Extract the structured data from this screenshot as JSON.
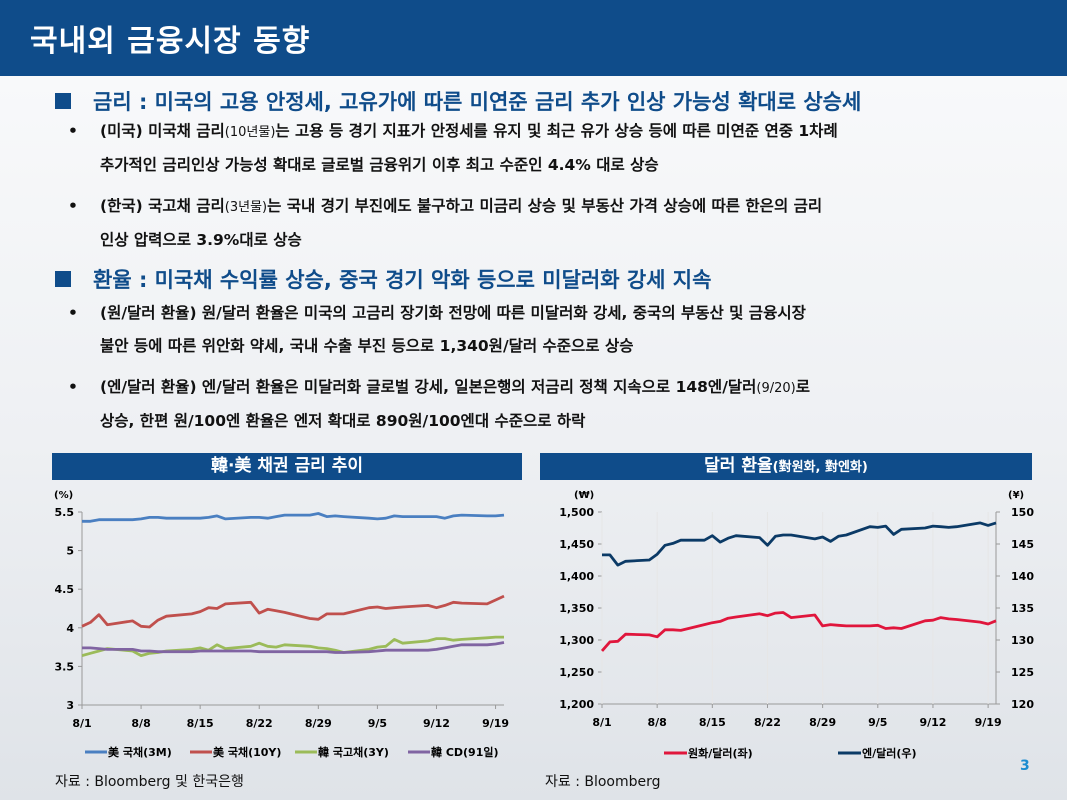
{
  "title": "국내외 금융시장 동향",
  "sections": [
    {
      "heading": "금리 : 미국의 고용 안정세, 고유가에 따른 미연준 금리 추가 인상 가능성 확대로 상승세",
      "bullets": [
        {
          "a": "(미국) 미국채 금리",
          "s": "(10년물)",
          "b": "는 고용 등 경기 지표가 안정세를 유지 및 최근 유가 상승 등에 따른 미연준 연중 1차례",
          "c": "추가적인 금리인상 가능성 확대로 글로벌 금융위기 이후 최고 수준인 4.4% 대로 상승"
        },
        {
          "a": "(한국) 국고채 금리",
          "s": "(3년물)",
          "b": "는 국내 경기 부진에도 불구하고 미금리 상승 및 부동산 가격 상승에 따른 한은의 금리",
          "c": "인상 압력으로 3.9%대로 상승"
        }
      ]
    },
    {
      "heading": "환율 : 미국채 수익률 상승, 중국 경기 악화 등으로 미달러화 강세 지속",
      "bullets": [
        {
          "a": "(원/달러 환율) 원/달러 환율은 미국의 고금리 장기화 전망에 따른 미달러화 강세, 중국의 부동산 및 금융시장",
          "s": "",
          "b": "",
          "c": "불안 등에 따른 위안화 약세, 국내 수출 부진 등으로 1,340원/달러 수준으로 상승"
        },
        {
          "a": "(엔/달러 환율) 엔/달러 환율은 미달러화 글로벌 강세, 일본은행의 저금리 정책 지속으로 148엔/달러",
          "s": "(9/20)",
          "b": "로",
          "c": "상승, 한편 원/100엔 환율은 엔저 확대로 890원/100엔대 수준으로 하락"
        }
      ]
    }
  ],
  "bullet_symbol": "•",
  "page_number": "3",
  "chart_data": [
    {
      "type": "line",
      "title": "韓·美 채권 금리 추이",
      "ylabel": "(%)",
      "ylim": [
        3,
        5.5
      ],
      "yticks": [
        "3",
        "3.5",
        "4",
        "4.5",
        "5",
        "5.5"
      ],
      "xticks": [
        "8/1",
        "8/8",
        "8/15",
        "8/22",
        "8/29",
        "9/5",
        "9/12",
        "9/19"
      ],
      "x": [
        "8/1",
        "8/2",
        "8/3",
        "8/4",
        "8/7",
        "8/8",
        "8/9",
        "8/10",
        "8/11",
        "8/14",
        "8/15",
        "8/16",
        "8/17",
        "8/18",
        "8/21",
        "8/22",
        "8/23",
        "8/24",
        "8/25",
        "8/28",
        "8/29",
        "8/30",
        "8/31",
        "9/1",
        "9/4",
        "9/5",
        "9/6",
        "9/7",
        "9/8",
        "9/11",
        "9/12",
        "9/13",
        "9/14",
        "9/15",
        "9/18",
        "9/19",
        "9/20"
      ],
      "legend": "bottom",
      "series": [
        {
          "name": "美 국채(3M)",
          "color": "#4a7fc1",
          "values": [
            5.38,
            5.38,
            5.4,
            5.4,
            5.4,
            5.41,
            5.43,
            5.43,
            5.42,
            5.42,
            5.42,
            5.43,
            5.45,
            5.41,
            5.43,
            5.43,
            5.42,
            5.44,
            5.46,
            5.46,
            5.48,
            5.44,
            5.45,
            5.44,
            5.42,
            5.41,
            5.42,
            5.45,
            5.44,
            5.44,
            5.44,
            5.42,
            5.45,
            5.46,
            5.45,
            5.45,
            5.46
          ]
        },
        {
          "name": "美 국채(10Y)",
          "color": "#c0504d",
          "values": [
            4.02,
            4.07,
            4.17,
            4.04,
            4.09,
            4.02,
            4.01,
            4.1,
            4.15,
            4.18,
            4.21,
            4.26,
            4.25,
            4.31,
            4.33,
            4.19,
            4.24,
            4.22,
            4.2,
            4.12,
            4.11,
            4.18,
            4.18,
            4.18,
            4.26,
            4.27,
            4.25,
            4.26,
            4.27,
            4.29,
            4.26,
            4.29,
            4.33,
            4.32,
            4.31,
            4.36,
            4.41
          ]
        },
        {
          "name": "韓 국고채(3Y)",
          "color": "#9bbb59",
          "values": [
            3.64,
            3.67,
            3.7,
            3.73,
            3.7,
            3.64,
            3.67,
            3.68,
            3.7,
            3.72,
            3.74,
            3.71,
            3.78,
            3.73,
            3.76,
            3.8,
            3.76,
            3.75,
            3.78,
            3.76,
            3.74,
            3.73,
            3.71,
            3.68,
            3.72,
            3.75,
            3.76,
            3.85,
            3.8,
            3.83,
            3.86,
            3.86,
            3.84,
            3.85,
            3.87,
            3.88,
            3.88
          ]
        },
        {
          "name": "韓 CD(91일)",
          "color": "#8064a2",
          "values": [
            3.74,
            3.74,
            3.73,
            3.72,
            3.72,
            3.7,
            3.7,
            3.69,
            3.69,
            3.69,
            3.7,
            3.7,
            3.7,
            3.7,
            3.7,
            3.69,
            3.69,
            3.69,
            3.69,
            3.69,
            3.69,
            3.69,
            3.68,
            3.68,
            3.69,
            3.7,
            3.71,
            3.71,
            3.71,
            3.71,
            3.72,
            3.74,
            3.76,
            3.78,
            3.78,
            3.79,
            3.81
          ]
        }
      ],
      "source": "자료 : Bloomberg 및 한국은행"
    },
    {
      "type": "line",
      "title": "달러 환율",
      "title_sub": "(對원화, 對엔화)",
      "ylabel": "(₩)",
      "y2label": "(¥)",
      "ylim": [
        1200,
        1500
      ],
      "y2lim": [
        120,
        150
      ],
      "yticks": [
        "1,200",
        "1,250",
        "1,300",
        "1,350",
        "1,400",
        "1,450",
        "1,500"
      ],
      "y2ticks": [
        "120",
        "125",
        "130",
        "135",
        "140",
        "145",
        "150"
      ],
      "xticks": [
        "8/1",
        "8/8",
        "8/15",
        "8/22",
        "8/29",
        "9/5",
        "9/12",
        "9/19"
      ],
      "legend": "bottom",
      "series": [
        {
          "name": "원화/달러(좌)",
          "color": "#e0163c",
          "axis": "left",
          "values": [
            1283,
            1297,
            1298,
            1309,
            1308,
            1305,
            1316,
            1316,
            1315,
            1324,
            1327,
            1329,
            1334,
            1336,
            1341,
            1338,
            1342,
            1343,
            1335,
            1339,
            1322,
            1324,
            1323,
            1322,
            1322,
            1323,
            1318,
            1319,
            1318,
            1330,
            1331,
            1335,
            1333,
            1332,
            1328,
            1325,
            1330
          ]
        },
        {
          "name": "엔/달러(우)",
          "color": "#0b3a66",
          "axis": "right",
          "values": [
            143.3,
            143.3,
            141.7,
            142.3,
            142.5,
            143.4,
            144.8,
            145.1,
            145.6,
            145.6,
            146.3,
            145.3,
            145.9,
            146.3,
            146.0,
            144.8,
            146.2,
            146.4,
            146.4,
            145.8,
            146.1,
            145.4,
            146.2,
            146.4,
            147.7,
            147.6,
            147.8,
            146.5,
            147.3,
            147.5,
            147.8,
            147.7,
            147.6,
            147.7,
            148.3,
            147.9,
            148.3
          ]
        }
      ],
      "source": "자료 : Bloomberg"
    }
  ]
}
